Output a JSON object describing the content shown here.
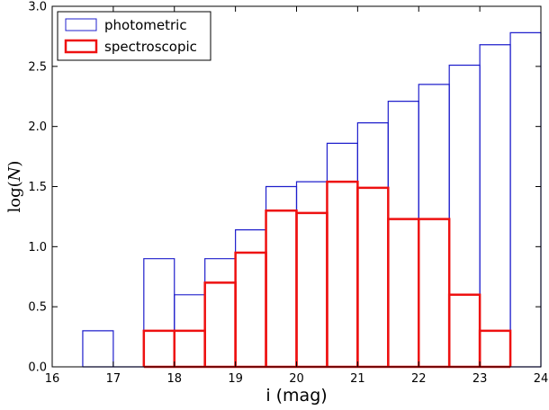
{
  "chart_data": {
    "type": "bar",
    "title": "",
    "xlabel": "i (mag)",
    "ylabel": "log(N)",
    "xlim": [
      16,
      24
    ],
    "ylim": [
      0,
      3.0
    ],
    "x_ticks": [
      "16",
      "17",
      "18",
      "19",
      "20",
      "21",
      "22",
      "23",
      "24"
    ],
    "y_ticks": [
      "0.0",
      "0.5",
      "1.0",
      "1.5",
      "2.0",
      "2.5",
      "3.0"
    ],
    "bin_width": 0.5,
    "legend": {
      "position": "top-left"
    },
    "series": [
      {
        "name": "photometric",
        "color": "#1f1fcc",
        "style": "step-outline",
        "bins": [
          {
            "x0": 16.5,
            "x1": 17.0,
            "y": 0.3
          },
          {
            "x0": 17.5,
            "x1": 18.0,
            "y": 0.9
          },
          {
            "x0": 18.0,
            "x1": 18.5,
            "y": 0.6
          },
          {
            "x0": 18.5,
            "x1": 19.0,
            "y": 0.9
          },
          {
            "x0": 19.0,
            "x1": 19.5,
            "y": 1.14
          },
          {
            "x0": 19.5,
            "x1": 20.0,
            "y": 1.5
          },
          {
            "x0": 20.0,
            "x1": 20.5,
            "y": 1.54
          },
          {
            "x0": 20.5,
            "x1": 21.0,
            "y": 1.86
          },
          {
            "x0": 21.0,
            "x1": 21.5,
            "y": 2.03
          },
          {
            "x0": 21.5,
            "x1": 22.0,
            "y": 2.21
          },
          {
            "x0": 22.0,
            "x1": 22.5,
            "y": 2.35
          },
          {
            "x0": 22.5,
            "x1": 23.0,
            "y": 2.51
          },
          {
            "x0": 23.0,
            "x1": 23.5,
            "y": 2.68
          },
          {
            "x0": 23.5,
            "x1": 24.0,
            "y": 2.78
          }
        ]
      },
      {
        "name": "spectroscopic",
        "color": "#ee1111",
        "style": "step-outline-thick",
        "bins": [
          {
            "x0": 17.5,
            "x1": 18.0,
            "y": 0.3
          },
          {
            "x0": 18.0,
            "x1": 18.5,
            "y": 0.3
          },
          {
            "x0": 18.5,
            "x1": 19.0,
            "y": 0.7
          },
          {
            "x0": 19.0,
            "x1": 19.5,
            "y": 0.95
          },
          {
            "x0": 19.5,
            "x1": 20.0,
            "y": 1.3
          },
          {
            "x0": 20.0,
            "x1": 20.5,
            "y": 1.28
          },
          {
            "x0": 20.5,
            "x1": 21.0,
            "y": 1.54
          },
          {
            "x0": 21.0,
            "x1": 21.5,
            "y": 1.49
          },
          {
            "x0": 21.5,
            "x1": 22.0,
            "y": 1.23
          },
          {
            "x0": 22.0,
            "x1": 22.5,
            "y": 1.23
          },
          {
            "x0": 22.5,
            "x1": 23.0,
            "y": 0.6
          },
          {
            "x0": 23.0,
            "x1": 23.5,
            "y": 0.3
          }
        ]
      }
    ]
  }
}
